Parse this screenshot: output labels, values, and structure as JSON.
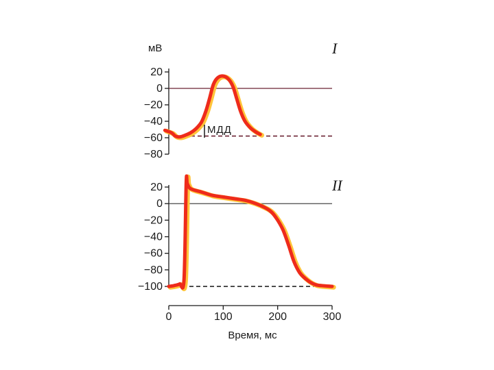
{
  "chart_data": [
    {
      "panel": "I",
      "type": "line",
      "ylabel": "мВ",
      "ylim": [
        -80,
        20
      ],
      "yticks": [
        20,
        0,
        -20,
        -40,
        -60,
        -80
      ],
      "xlim": [
        0,
        300
      ],
      "reference_lines": [
        {
          "y": 0,
          "style": "solid"
        },
        {
          "y": -58,
          "style": "dashed"
        }
      ],
      "annotation": "МДД",
      "colors": {
        "trace": "#ee2b1b",
        "trace_highlight": "#ffc43a",
        "zero_line": "#6b2233",
        "dashed_line": "#6b2233"
      },
      "series": [
        {
          "x": [
            -7,
            5,
            12,
            20,
            30,
            40,
            50,
            60,
            68,
            75,
            82,
            90,
            100,
            110,
            118,
            125,
            132,
            140,
            150,
            160,
            168
          ],
          "y": [
            -51,
            -54,
            -58,
            -59,
            -57,
            -54,
            -49,
            -41,
            -28,
            -12,
            5,
            13,
            15,
            11,
            2,
            -13,
            -28,
            -40,
            -48,
            -53,
            -56
          ]
        }
      ]
    },
    {
      "panel": "II",
      "type": "line",
      "ylim": [
        -100,
        20
      ],
      "yticks": [
        20,
        0,
        -20,
        -40,
        -60,
        -80,
        -100
      ],
      "xlim": [
        0,
        300
      ],
      "xticks": [
        0,
        100,
        200,
        300
      ],
      "xlabel": "Время, мс",
      "reference_lines": [
        {
          "y": 0,
          "style": "solid"
        },
        {
          "y": -100,
          "style": "dashed"
        }
      ],
      "colors": {
        "trace": "#ee2b1b",
        "trace_highlight": "#ffc43a",
        "zero_line": "#333333",
        "dashed_line": "#111111"
      },
      "series": [
        {
          "x": [
            0,
            10,
            20,
            28,
            32,
            34,
            40,
            60,
            80,
            100,
            120,
            140,
            160,
            180,
            190,
            200,
            210,
            220,
            230,
            240,
            250,
            260,
            270,
            280,
            300
          ],
          "y": [
            -100,
            -99,
            -97,
            -92,
            25,
            24,
            18,
            14,
            10,
            8,
            6,
            4,
            0,
            -6,
            -11,
            -20,
            -32,
            -50,
            -70,
            -83,
            -90,
            -95,
            -98,
            -99,
            -100
          ]
        }
      ]
    }
  ]
}
